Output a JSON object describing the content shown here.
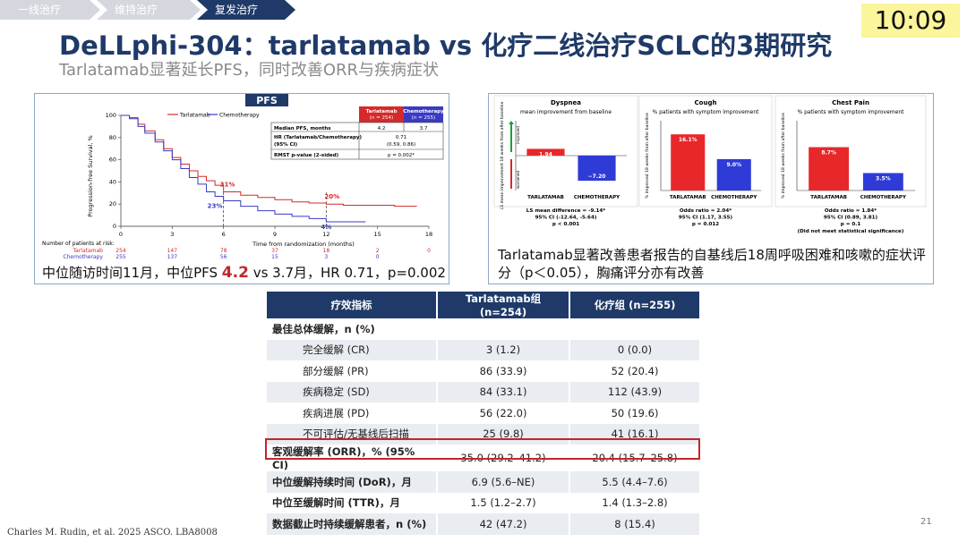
{
  "breadcrumb": [
    "一线治疗",
    "维持治疗",
    "复发治疗"
  ],
  "clock": "10:09",
  "title": "DeLLphi-304：tarlatamab vs 化疗二线治疗SCLC的3期研究",
  "subtitle": "Tarlatamab显著延长PFS，同时改善ORR与疾病症状",
  "pfs": {
    "header": "PFS",
    "legend": [
      "Tarlatamab",
      "Chemotherapy"
    ],
    "yaxis_label": "Progression-free Survival, %",
    "xaxis_label": "Time from randomization (months)",
    "risk_title": "Number of patients at risk:",
    "stats": {
      "col_tarla": "Tarlatamab",
      "col_tarla_n": "(n = 254)",
      "col_chemo": "Chemotherapy",
      "col_chemo_n": "(n = 255)",
      "r1_label": "Median PFS, months",
      "r1_tarla": "4.2",
      "r1_chemo": "3.7",
      "r2_label": "HR (Tarlatamab/Chemotherapy)",
      "r2_label2": "(95% CI)",
      "r2_value": "0.71",
      "r2_value2": "(0.59, 0.86)",
      "r3_label": "RMST p-value (2-sided)",
      "r3_value": "p = 0.002*"
    },
    "caption_pre": "中位随访时间11月，中位PFS ",
    "caption_hl": "4.2",
    "caption_post": " vs 3.7月，HR 0.71，p=0.002"
  },
  "chart_data": [
    {
      "type": "line",
      "xlabel": "Time from randomization (months)",
      "ylabel": "Progression-free Survival, %",
      "xlim": [
        0,
        18
      ],
      "ylim": [
        0,
        100
      ],
      "xticks": [
        0,
        3,
        6,
        9,
        12,
        15,
        18
      ],
      "yticks": [
        0,
        20,
        40,
        60,
        80,
        100
      ],
      "series": [
        {
          "name": "Tarlatamab",
          "color": "#d42a2a",
          "x": [
            0,
            0.5,
            1,
            1.4,
            2,
            2.5,
            3,
            3.5,
            4,
            4.5,
            5,
            5.5,
            6,
            7,
            8,
            9,
            10,
            11,
            12,
            13,
            14,
            15,
            16,
            17
          ],
          "y": [
            100,
            98,
            92,
            86,
            78,
            70,
            62,
            56,
            50,
            45,
            41,
            37,
            31,
            28,
            26,
            24,
            22,
            21,
            20,
            19,
            19,
            19,
            18,
            18
          ]
        },
        {
          "name": "Chemotherapy",
          "color": "#3a3ac4",
          "x": [
            0,
            0.5,
            1,
            1.4,
            2,
            2.5,
            3,
            3.5,
            4,
            4.5,
            5,
            5.5,
            6,
            7,
            8,
            9,
            10,
            11,
            12,
            13,
            14
          ],
          "y": [
            100,
            97,
            90,
            84,
            76,
            68,
            60,
            52,
            44,
            38,
            31,
            27,
            23,
            18,
            14,
            11,
            9,
            7,
            4,
            4,
            4
          ]
        }
      ],
      "annotations": [
        {
          "x": 6,
          "y": 31,
          "text": "31%",
          "color": "#d42a2a"
        },
        {
          "x": 6,
          "y": 23,
          "text": "23%",
          "color": "#3a3ac4"
        },
        {
          "x": 12,
          "y": 20,
          "text": "20%",
          "color": "#d42a2a"
        },
        {
          "x": 12,
          "y": 4,
          "text": "4%",
          "color": "#3a3ac4"
        }
      ],
      "risk_table": {
        "x": [
          0,
          3,
          6,
          9,
          12,
          15,
          18
        ],
        "Tarlatamab": [
          "254",
          "147",
          "78",
          "37",
          "18",
          "2",
          "0"
        ],
        "Chemotherapy": [
          "255",
          "137",
          "56",
          "15",
          "3",
          "0",
          ""
        ]
      }
    },
    {
      "type": "bar",
      "title": "Dyspnea",
      "subtitle": "mean improvement from baseline",
      "ylabel": "LS mean improvement 18 weeks from after baseline",
      "y_improved": "improved",
      "y_worsened": "worsened",
      "categories": [
        "TARLATAMAB",
        "CHEMOTHERAPY"
      ],
      "values": [
        1.94,
        -7.2
      ],
      "value_labels": [
        "1.94",
        "−7.20"
      ],
      "ylim": [
        -10,
        10
      ],
      "stat1": "LS mean difference = -9.14*",
      "stat2": "95% CI (-12.64, -5.64)",
      "stat3": "p < 0.001"
    },
    {
      "type": "bar",
      "title": "Cough",
      "subtitle": "% patients with symptom improvement",
      "ylabel": "% improved 18 weeks from after baseline",
      "categories": [
        "TARLATAMAB",
        "CHEMOTHERAPY"
      ],
      "values": [
        16.1,
        9.0
      ],
      "value_labels": [
        "16.1%",
        "9.0%"
      ],
      "ylim": [
        0,
        20
      ],
      "stat1": "Odds ratio = 2.04*",
      "stat2": "95% CI (1.17, 3.55)",
      "stat3": "p = 0.012"
    },
    {
      "type": "bar",
      "title": "Chest Pain",
      "subtitle": "% patients with symptom improvement",
      "ylabel": "% improved 18 weeks from after baseline",
      "categories": [
        "TARLATAMAB",
        "CHEMOTHERAPY"
      ],
      "values": [
        8.7,
        3.5
      ],
      "value_labels": [
        "8.7%",
        "3.5%"
      ],
      "ylim": [
        0,
        14
      ],
      "stat1": "Odds ratio = 1.84*",
      "stat2": "95% CI (0.89, 3.81)",
      "stat3": "p = 0.1",
      "stat4": "(Did not meet statistical significance)"
    }
  ],
  "symptom_caption": "Tarlatamab显著改善患者报告的自基线后18周呼吸困难和咳嗽的症状评分（p＜0.05），胸痛评分亦有改善",
  "table": {
    "headers": [
      "疗效指标",
      "Tarlatamab组(n=254)",
      "化疗组 (n=255)"
    ],
    "rows": [
      [
        "最佳总体缓解，n (%)",
        "",
        ""
      ],
      [
        "完全缓解 (CR)",
        "3 (1.2)",
        "0 (0.0)"
      ],
      [
        "部分缓解 (PR)",
        "86 (33.9)",
        "52 (20.4)"
      ],
      [
        "疾病稳定 (SD)",
        "84 (33.1)",
        "112 (43.9)"
      ],
      [
        "疾病进展 (PD)",
        "56 (22.0)",
        "50 (19.6)"
      ],
      [
        "不可评估/无基线后扫描",
        "25 (9.8)",
        "41 (16.1)"
      ],
      [
        "客观缓解率 (ORR)，% (95% CI)",
        "35.0 (29.2–41.2)",
        "20.4 (15.7–25.8)"
      ],
      [
        "中位缓解持续时间 (DoR)，月",
        "6.9 (5.6–NE)",
        "5.5 (4.4–7.6)"
      ],
      [
        "中位至缓解时间 (TTR)，月",
        "1.5 (1.2–2.7)",
        "1.4 (1.3–2.8)"
      ],
      [
        "数据截止时持续缓解患者，n (%)",
        "42 (47.2)",
        "8 (15.4)"
      ]
    ]
  },
  "reference": "Charles M. Rudin, et al. 2025 ASCO. LBA8008",
  "page_number": "21"
}
